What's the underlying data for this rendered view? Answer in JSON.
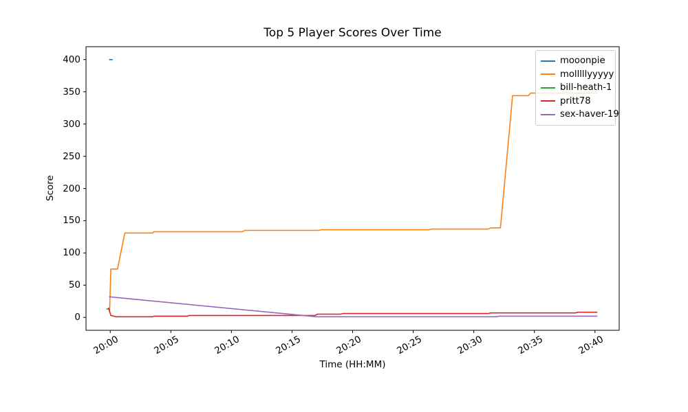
{
  "figure": {
    "title": "Top 5 Player Scores Over Time"
  },
  "chart_data": {
    "type": "line",
    "title": "Top 5 Player Scores Over Time",
    "xlabel": "Time (HH:MM)",
    "ylabel": "Score",
    "x_unit": "minutes after 20:00",
    "xlim": [
      -2,
      42
    ],
    "ylim": [
      -20,
      420
    ],
    "grid": false,
    "legend_position": "upper right",
    "x_ticks": [
      {
        "minutes": 0,
        "label": "20:00"
      },
      {
        "minutes": 5,
        "label": "20:05"
      },
      {
        "minutes": 10,
        "label": "20:10"
      },
      {
        "minutes": 15,
        "label": "20:15"
      },
      {
        "minutes": 20,
        "label": "20:20"
      },
      {
        "minutes": 25,
        "label": "20:25"
      },
      {
        "minutes": 30,
        "label": "20:30"
      },
      {
        "minutes": 35,
        "label": "20:35"
      },
      {
        "minutes": 40,
        "label": "20:40"
      }
    ],
    "y_ticks": [
      0,
      50,
      100,
      150,
      200,
      250,
      300,
      350,
      400
    ],
    "series": [
      {
        "name": "mooonpie",
        "color": "#1f77b4",
        "points": [
          [
            -0.1,
            400
          ],
          [
            0.2,
            400
          ]
        ]
      },
      {
        "name": "molllllyyyyy",
        "color": "#ff7f0e",
        "points": [
          [
            -0.05,
            8
          ],
          [
            0.05,
            75
          ],
          [
            0.6,
            75
          ],
          [
            1.2,
            131
          ],
          [
            3.5,
            131
          ],
          [
            3.6,
            133
          ],
          [
            10.9,
            133
          ],
          [
            11.1,
            135
          ],
          [
            17.2,
            135
          ],
          [
            17.4,
            136
          ],
          [
            26.3,
            136
          ],
          [
            26.5,
            137
          ],
          [
            31.2,
            137
          ],
          [
            31.4,
            139
          ],
          [
            32.2,
            139
          ],
          [
            33.2,
            344
          ],
          [
            34.5,
            344
          ],
          [
            34.7,
            348
          ],
          [
            40.2,
            348
          ]
        ]
      },
      {
        "name": "bill-heath-1",
        "color": "#2ca02c",
        "points": [
          [
            -0.3,
            13
          ],
          [
            -0.05,
            13
          ]
        ]
      },
      {
        "name": "pritt78",
        "color": "#d62728",
        "points": [
          [
            -0.15,
            15
          ],
          [
            0.05,
            3
          ],
          [
            0.5,
            1
          ],
          [
            3.5,
            1
          ],
          [
            3.6,
            2
          ],
          [
            6.4,
            2
          ],
          [
            6.5,
            3
          ],
          [
            16.9,
            3
          ],
          [
            17.1,
            5
          ],
          [
            19.0,
            5
          ],
          [
            19.2,
            6
          ],
          [
            31.2,
            6
          ],
          [
            31.4,
            7
          ],
          [
            38.4,
            7
          ],
          [
            38.6,
            8
          ],
          [
            40.2,
            8
          ]
        ]
      },
      {
        "name": "sex-haver-19",
        "color": "#9467bd",
        "points": [
          [
            -0.1,
            32
          ],
          [
            17.0,
            1
          ],
          [
            31.9,
            1
          ],
          [
            32.1,
            2
          ],
          [
            40.2,
            2
          ]
        ]
      }
    ]
  }
}
